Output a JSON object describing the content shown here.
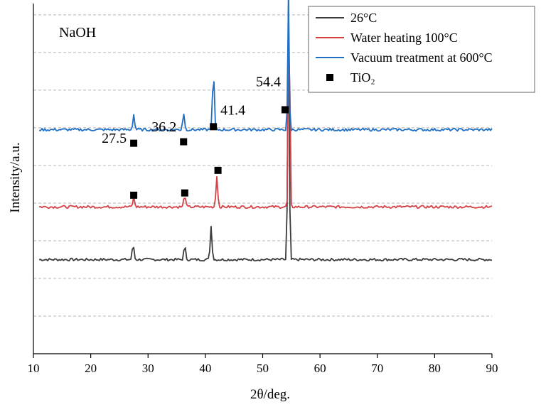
{
  "chart_data": {
    "type": "line",
    "xlabel": "2θ/deg.",
    "ylabel": "Intensity/a.u.",
    "xlim": [
      10,
      90
    ],
    "ylim": [
      0,
      9.3
    ],
    "xticks": [
      10,
      20,
      30,
      40,
      50,
      60,
      70,
      80,
      90
    ],
    "grid": "horizontal dashed",
    "legend_position": "top-right",
    "inset_label": "NaOH",
    "series": [
      {
        "name": "26°C",
        "color": "#3b3b3b",
        "baseline": 2.5,
        "peaks": [
          [
            27.4,
            0.4
          ],
          [
            36.4,
            0.35
          ],
          [
            41.0,
            0.88
          ],
          [
            54.5,
            9.0
          ]
        ]
      },
      {
        "name": "Water heating 100°C",
        "color": "#d64045",
        "baseline": 3.9,
        "peaks": [
          [
            27.5,
            0.25
          ],
          [
            36.4,
            0.32
          ],
          [
            42.0,
            0.83
          ],
          [
            54.6,
            6.0
          ]
        ]
      },
      {
        "name": "Vacuum treatment at 600°C",
        "color": "#1f6fc5",
        "baseline": 5.95,
        "peaks": [
          [
            27.5,
            0.4
          ],
          [
            36.2,
            0.45
          ],
          [
            41.4,
            1.55
          ],
          [
            54.5,
            3.5
          ]
        ]
      }
    ],
    "marker_series": {
      "name": "TiO₂",
      "symbol": "square",
      "points": [
        [
          27.5,
          5.59
        ],
        [
          36.2,
          5.63
        ],
        [
          41.4,
          6.03
        ],
        [
          53.9,
          6.48
        ],
        [
          27.5,
          4.21
        ],
        [
          36.4,
          4.27
        ],
        [
          42.2,
          4.87
        ]
      ]
    },
    "annotations": [
      {
        "text": "27.5",
        "x": 27.5,
        "y": 5.6
      },
      {
        "text": "36.2",
        "x": 36.2,
        "y": 5.9
      },
      {
        "text": "41.4",
        "x": 41.4,
        "y": 6.35
      },
      {
        "text": "54.4",
        "x": 54.4,
        "y": 7.1
      }
    ]
  }
}
